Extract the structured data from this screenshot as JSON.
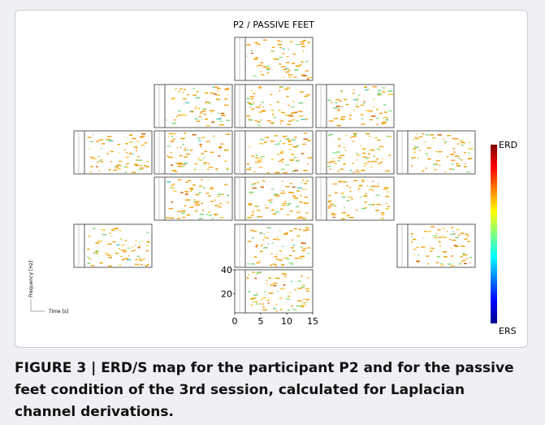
{
  "figure": {
    "title": "P2 / PASSIVE FEET",
    "axis": {
      "xlim": [
        0,
        15
      ],
      "ylim": [
        4,
        40
      ],
      "xticks": [
        0,
        5,
        10,
        15
      ],
      "yticks": [
        20,
        40
      ]
    },
    "orientation": {
      "y_label": "Frequency [Hz]",
      "x_label": "Time [s]"
    },
    "colorbar": {
      "top": "ERD",
      "bottom": "ERS"
    }
  },
  "caption": "FIGURE 3 | ERD/S map for the participant P2 and for the passive feet condition of the 3rd session, calculated for Laplacian channel derivations."
}
